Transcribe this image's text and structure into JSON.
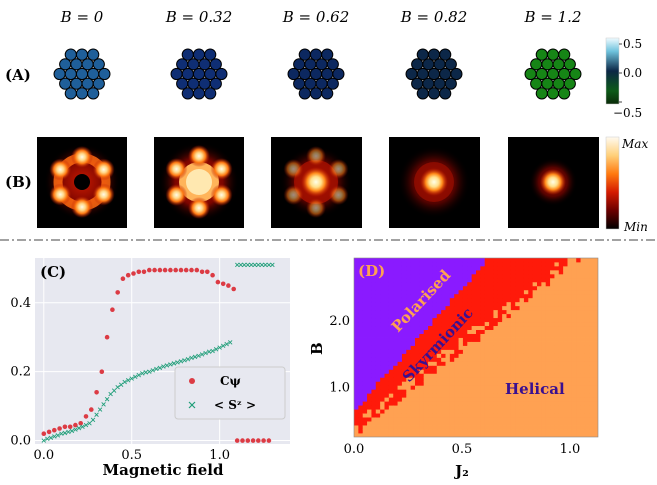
{
  "panel_labels": {
    "a": "(A)",
    "b": "(B)",
    "c": "(C)",
    "d": "(D)"
  },
  "row_a": {
    "titles": [
      "B = 0",
      "B = 0.32",
      "B = 0.62",
      "B = 0.82",
      "B = 1.2"
    ],
    "fill_colors": [
      "#1f5f9a",
      "#0f2e74",
      "#0c2860",
      "#0c2748",
      "#168516"
    ],
    "colorbar_ticks": [
      "0.5",
      "0.0",
      "−0.5"
    ]
  },
  "row_b": {
    "colorbar_ticks": [
      "Max",
      "Min"
    ]
  },
  "chart_data": [
    {
      "type": "scatter",
      "panel": "(C)",
      "xlabel": "Magnetic field",
      "ylabel": "",
      "xlim": [
        -0.05,
        1.4
      ],
      "ylim": [
        -0.01,
        0.53
      ],
      "xticks": [
        "0.0",
        "0.5",
        "1.0"
      ],
      "yticks": [
        "0.0",
        "0.2",
        "0.4"
      ],
      "grid": true,
      "legend_position": "lower-right",
      "series": [
        {
          "name": "Cψ",
          "marker": "circle",
          "color": "#dc3b44",
          "x": [
            0.0,
            0.03,
            0.06,
            0.09,
            0.12,
            0.15,
            0.18,
            0.21,
            0.24,
            0.27,
            0.3,
            0.33,
            0.36,
            0.39,
            0.42,
            0.45,
            0.48,
            0.51,
            0.54,
            0.57,
            0.6,
            0.63,
            0.66,
            0.69,
            0.72,
            0.75,
            0.78,
            0.81,
            0.84,
            0.87,
            0.9,
            0.93,
            0.96,
            0.99,
            1.02,
            1.05,
            1.08,
            1.1,
            1.13,
            1.16,
            1.19,
            1.22,
            1.25,
            1.28
          ],
          "y": [
            0.02,
            0.025,
            0.03,
            0.035,
            0.04,
            0.04,
            0.045,
            0.05,
            0.07,
            0.09,
            0.14,
            0.2,
            0.3,
            0.38,
            0.43,
            0.47,
            0.48,
            0.485,
            0.49,
            0.49,
            0.495,
            0.495,
            0.495,
            0.495,
            0.495,
            0.495,
            0.495,
            0.495,
            0.495,
            0.495,
            0.49,
            0.49,
            0.48,
            0.46,
            0.455,
            0.45,
            0.44,
            0.0,
            0.0,
            0.0,
            0.0,
            0.0,
            0.0,
            0.0
          ]
        },
        {
          "name": "< Sᶻ >",
          "marker": "x",
          "color": "#209e79",
          "x": [
            0.0,
            0.02,
            0.04,
            0.06,
            0.08,
            0.1,
            0.12,
            0.14,
            0.16,
            0.18,
            0.2,
            0.22,
            0.24,
            0.26,
            0.28,
            0.3,
            0.32,
            0.34,
            0.36,
            0.38,
            0.4,
            0.42,
            0.44,
            0.46,
            0.48,
            0.5,
            0.52,
            0.54,
            0.56,
            0.58,
            0.6,
            0.62,
            0.64,
            0.66,
            0.68,
            0.7,
            0.72,
            0.74,
            0.76,
            0.78,
            0.8,
            0.82,
            0.84,
            0.86,
            0.88,
            0.9,
            0.92,
            0.94,
            0.96,
            0.98,
            1.0,
            1.02,
            1.04,
            1.06,
            1.1,
            1.12,
            1.14,
            1.16,
            1.18,
            1.2,
            1.22,
            1.24,
            1.26,
            1.28,
            1.3
          ],
          "y": [
            0.0,
            0.005,
            0.008,
            0.012,
            0.015,
            0.02,
            0.022,
            0.025,
            0.028,
            0.032,
            0.036,
            0.04,
            0.045,
            0.05,
            0.06,
            0.075,
            0.09,
            0.105,
            0.12,
            0.135,
            0.145,
            0.155,
            0.162,
            0.17,
            0.175,
            0.18,
            0.185,
            0.19,
            0.195,
            0.198,
            0.2,
            0.204,
            0.208,
            0.211,
            0.215,
            0.218,
            0.221,
            0.224,
            0.227,
            0.23,
            0.233,
            0.236,
            0.24,
            0.243,
            0.246,
            0.25,
            0.254,
            0.258,
            0.26,
            0.265,
            0.27,
            0.275,
            0.28,
            0.285,
            0.51,
            0.51,
            0.51,
            0.51,
            0.51,
            0.51,
            0.51,
            0.51,
            0.51,
            0.51,
            0.51
          ]
        }
      ]
    },
    {
      "type": "heatmap",
      "panel": "(D)",
      "xlabel": "J₂",
      "ylabel": "B",
      "xlim": [
        0.0,
        1.13
      ],
      "ylim": [
        0.25,
        2.95
      ],
      "xticks": [
        "0.0",
        "0.5",
        "1.0"
      ],
      "yticks": [
        "1.0",
        "2.0"
      ],
      "phases": [
        {
          "name": "Polarised",
          "color": "#8a1aff"
        },
        {
          "name": "Skyrmionic",
          "color": "#ff1a0a"
        },
        {
          "name": "Helical",
          "color": "#ffa152"
        }
      ],
      "boundaries": {
        "polarised_skyrmionic": {
          "intercept": 0.62,
          "slope": 3.75
        },
        "skyrmionic_helical_lower": {
          "intercept": 0.3,
          "slope": 2.55
        },
        "skyrmionic_helical_upper": {
          "intercept": 0.58,
          "slope": 2.0
        }
      }
    }
  ]
}
